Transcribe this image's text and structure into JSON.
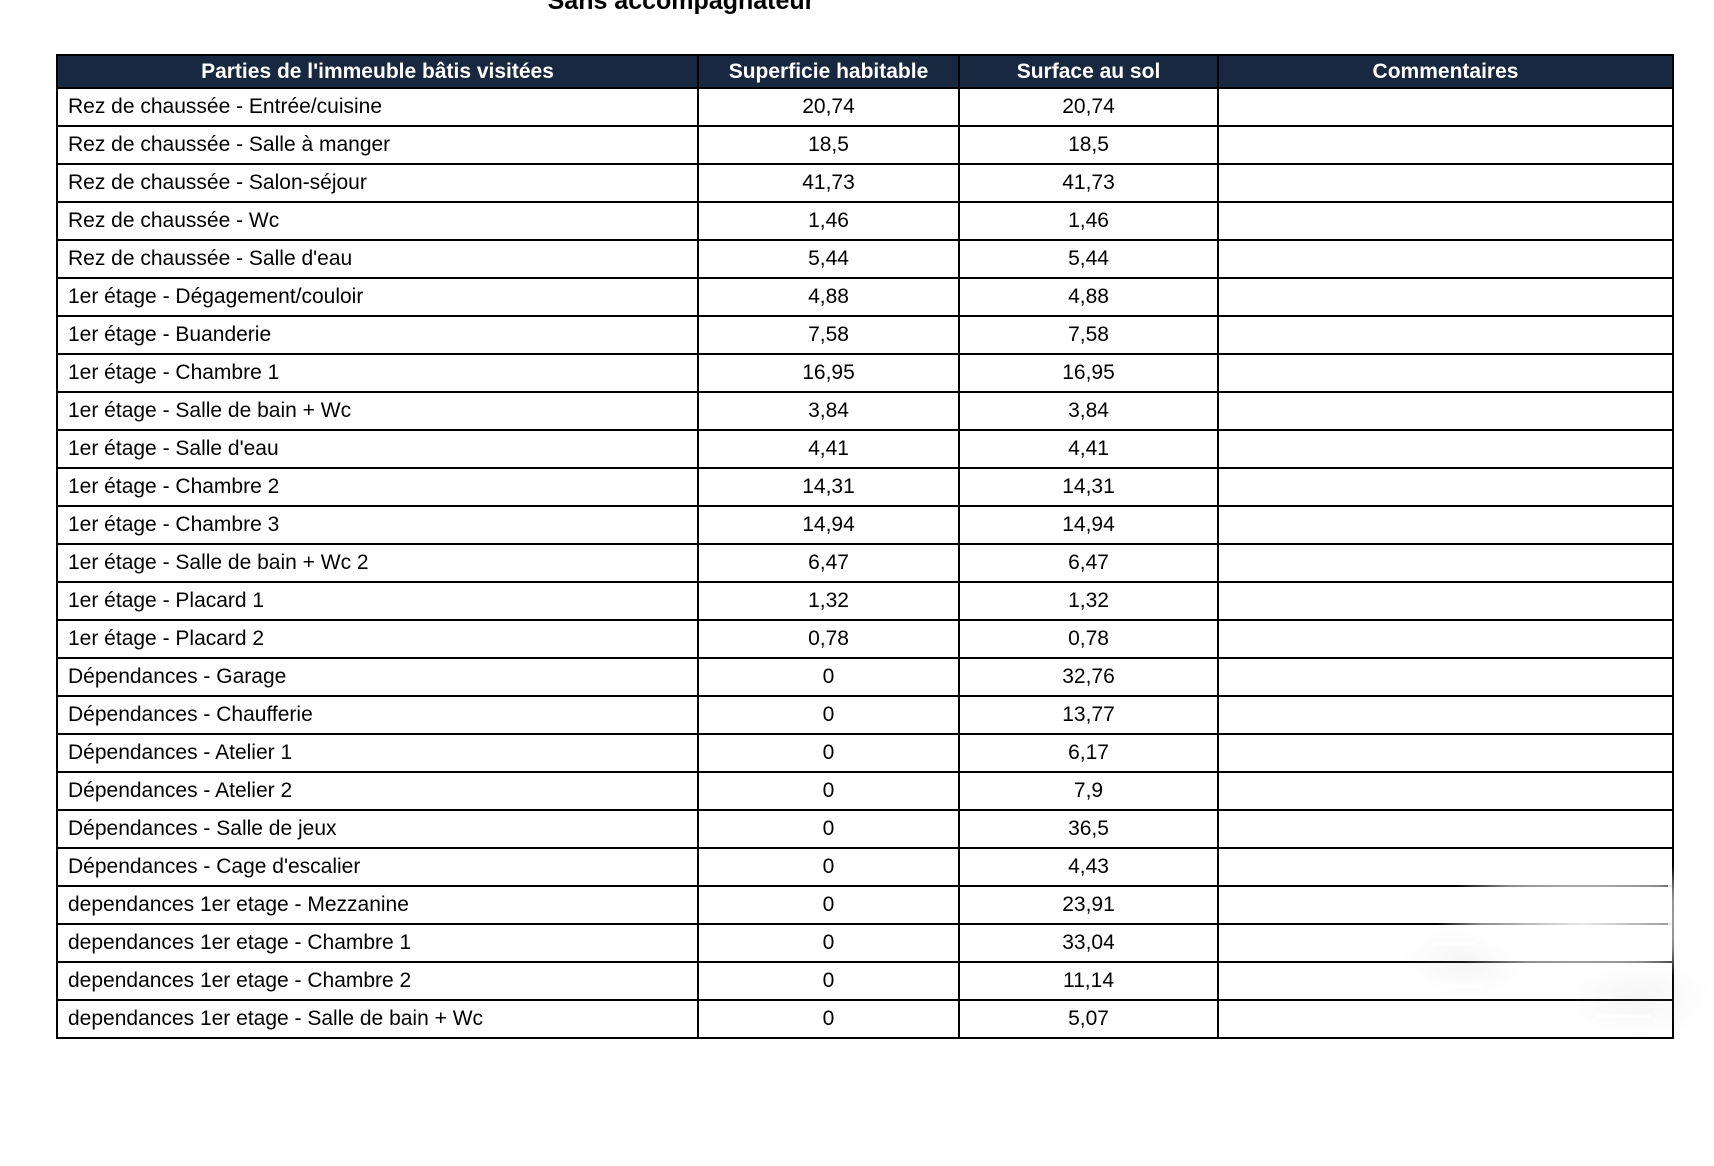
{
  "title": "Sans accompagnateur",
  "colors": {
    "header_bg": "#182840",
    "header_text": "#ffffff",
    "border": "#000000",
    "row_text": "#000000"
  },
  "table": {
    "columns": [
      "Parties de l'immeuble bâtis visitées",
      "Superficie habitable",
      "Surface au sol",
      "Commentaires"
    ],
    "rows": [
      [
        "Rez de chaussée - Entrée/cuisine",
        "20,74",
        "20,74",
        ""
      ],
      [
        "Rez de chaussée - Salle à manger",
        "18,5",
        "18,5",
        ""
      ],
      [
        "Rez de chaussée - Salon-séjour",
        "41,73",
        "41,73",
        ""
      ],
      [
        "Rez de chaussée - Wc",
        "1,46",
        "1,46",
        ""
      ],
      [
        "Rez de chaussée - Salle d'eau",
        "5,44",
        "5,44",
        ""
      ],
      [
        "1er étage - Dégagement/couloir",
        "4,88",
        "4,88",
        ""
      ],
      [
        "1er étage - Buanderie",
        "7,58",
        "7,58",
        ""
      ],
      [
        "1er étage - Chambre 1",
        "16,95",
        "16,95",
        ""
      ],
      [
        "1er étage - Salle de bain + Wc",
        "3,84",
        "3,84",
        ""
      ],
      [
        "1er étage - Salle d'eau",
        "4,41",
        "4,41",
        ""
      ],
      [
        "1er étage - Chambre 2",
        "14,31",
        "14,31",
        ""
      ],
      [
        "1er étage - Chambre 3",
        "14,94",
        "14,94",
        ""
      ],
      [
        "1er étage - Salle de bain + Wc 2",
        "6,47",
        "6,47",
        ""
      ],
      [
        "1er étage - Placard 1",
        "1,32",
        "1,32",
        ""
      ],
      [
        "1er étage - Placard 2",
        "0,78",
        "0,78",
        ""
      ],
      [
        "Dépendances - Garage",
        "0",
        "32,76",
        ""
      ],
      [
        "Dépendances - Chaufferie",
        "0",
        "13,77",
        ""
      ],
      [
        "Dépendances - Atelier 1",
        "0",
        "6,17",
        ""
      ],
      [
        "Dépendances - Atelier 2",
        "0",
        "7,9",
        ""
      ],
      [
        "Dépendances - Salle de jeux",
        "0",
        "36,5",
        ""
      ],
      [
        "Dépendances - Cage d'escalier",
        "0",
        "4,43",
        ""
      ],
      [
        "dependances 1er etage - Mezzanine",
        "0",
        "23,91",
        ""
      ],
      [
        "dependances 1er etage - Chambre 1",
        "0",
        "33,04",
        ""
      ],
      [
        "dependances 1er etage - Chambre 2",
        "0",
        "11,14",
        ""
      ],
      [
        "dependances 1er etage - Salle de bain + Wc",
        "0",
        "5,07",
        ""
      ]
    ]
  }
}
